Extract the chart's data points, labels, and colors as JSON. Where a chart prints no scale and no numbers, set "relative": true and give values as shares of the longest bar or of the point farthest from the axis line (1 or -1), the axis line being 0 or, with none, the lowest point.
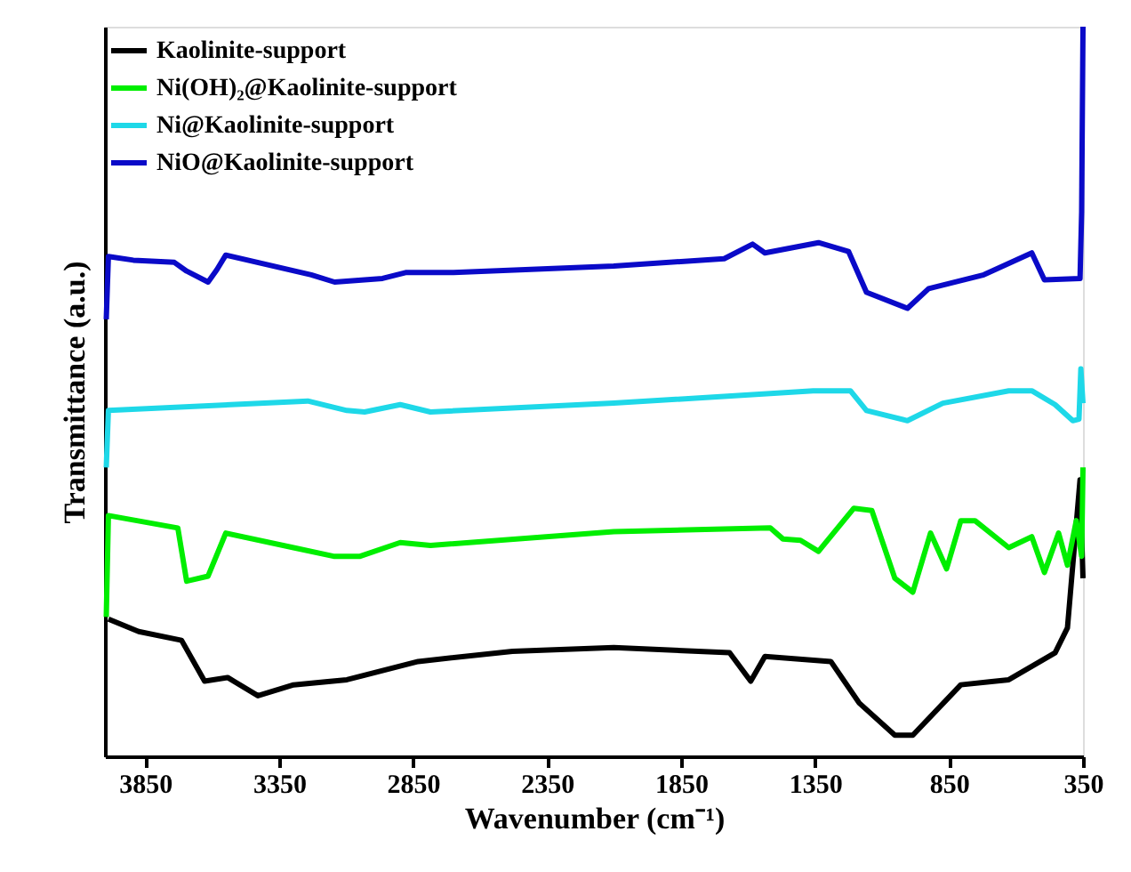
{
  "chart_data": {
    "type": "line",
    "relative": true,
    "xlabel": "Wavenumber (cm⁻¹)",
    "ylabel": "Transmittance (a.u.)",
    "xlim": [
      4000,
      350
    ],
    "xticks": [
      3850,
      3350,
      2850,
      2350,
      1850,
      1350,
      850,
      350
    ],
    "grid": false,
    "legend": "top left",
    "marker": "none",
    "line_style": "solid",
    "series": [
      {
        "name": "Kaolinite-support",
        "color": "#000000",
        "x": [
          3987,
          3874,
          3714,
          3628,
          3542,
          3429,
          3296,
          3097,
          2831,
          2479,
          2101,
          1669,
          1590,
          1537,
          1291,
          1185,
          1052,
          985,
          806,
          627,
          454,
          408,
          361,
          350
        ],
        "values": [
          0.188,
          0.171,
          0.159,
          0.103,
          0.108,
          0.083,
          0.098,
          0.105,
          0.13,
          0.144,
          0.149,
          0.142,
          0.103,
          0.137,
          0.13,
          0.073,
          0.029,
          0.029,
          0.098,
          0.105,
          0.142,
          0.176,
          0.379,
          0.244
        ]
      },
      {
        "name": "Ni(OH)₂@Kaolinite-support",
        "color": "#00ee00",
        "x": [
          3995,
          3987,
          3728,
          3695,
          3615,
          3549,
          3296,
          3143,
          3050,
          2898,
          2785,
          2101,
          1517,
          1470,
          1404,
          1337,
          1205,
          1138,
          1052,
          985,
          919,
          859,
          806,
          753,
          627,
          541,
          494,
          441,
          408,
          375,
          355,
          350
        ],
        "values": [
          0.191,
          0.33,
          0.313,
          0.24,
          0.247,
          0.306,
          0.286,
          0.274,
          0.274,
          0.293,
          0.289,
          0.308,
          0.313,
          0.298,
          0.296,
          0.281,
          0.34,
          0.337,
          0.244,
          0.225,
          0.306,
          0.257,
          0.323,
          0.323,
          0.286,
          0.301,
          0.252,
          0.306,
          0.262,
          0.323,
          0.274,
          0.396
        ]
      },
      {
        "name": "Ni@Kaolinite-support",
        "color": "#1ed8e8",
        "x": [
          3995,
          3987,
          3243,
          3097,
          3031,
          2898,
          2785,
          2101,
          1357,
          1218,
          1158,
          1005,
          873,
          627,
          541,
          454,
          388,
          365,
          358,
          350
        ],
        "values": [
          0.396,
          0.474,
          0.487,
          0.474,
          0.472,
          0.482,
          0.472,
          0.484,
          0.501,
          0.501,
          0.474,
          0.46,
          0.484,
          0.501,
          0.501,
          0.482,
          0.46,
          0.462,
          0.531,
          0.484
        ]
      },
      {
        "name": "NiO@Kaolinite-support",
        "color": "#0a0ac8",
        "x": [
          3995,
          3987,
          3894,
          3741,
          3695,
          3615,
          3582,
          3549,
          3230,
          3143,
          2964,
          2878,
          2699,
          2101,
          1689,
          1583,
          1537,
          1337,
          1225,
          1158,
          1005,
          926,
          720,
          541,
          494,
          361,
          355,
          350
        ],
        "values": [
          0.599,
          0.685,
          0.68,
          0.677,
          0.665,
          0.65,
          0.667,
          0.687,
          0.66,
          0.65,
          0.655,
          0.663,
          0.663,
          0.672,
          0.682,
          0.702,
          0.69,
          0.704,
          0.692,
          0.636,
          0.614,
          0.641,
          0.66,
          0.69,
          0.653,
          0.655,
          0.746,
          1.0
        ]
      }
    ]
  }
}
